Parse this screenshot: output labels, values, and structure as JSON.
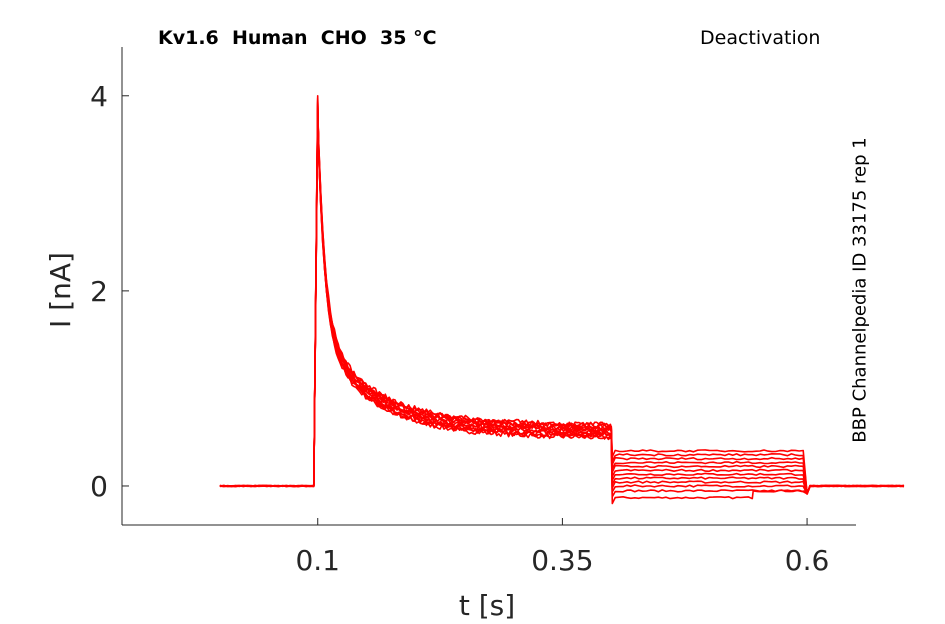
{
  "header": {
    "title": "Kv1.6  Human  CHO  35 °C",
    "protocol": "Deactivation",
    "source": "BBP Channelpedia ID 33175 rep 1"
  },
  "chart_data": {
    "type": "line",
    "title": "Kv1.6  Human  CHO  35 °C",
    "xlabel": "t [s]",
    "ylabel": "I [nA]",
    "xlim": [
      -0.1,
      0.65
    ],
    "ylim": [
      -0.4,
      4.5
    ],
    "xticks": [
      0.1,
      0.35,
      0.6
    ],
    "xtick_labels": [
      "0.1",
      "0.35",
      "0.6"
    ],
    "yticks": [
      0,
      2,
      4
    ],
    "ytick_labels": [
      "0",
      "2",
      "4"
    ],
    "grid": false,
    "line_color": "#ff0000",
    "series_count": 12,
    "segments": {
      "holding_level": 0.0,
      "step_on_time": 0.1,
      "peak_current": 4.0,
      "steady_current_end_of_step": 0.55,
      "tail_start_time": 0.4,
      "tail_end_time": 0.6,
      "trace_end_time": 0.7,
      "tail_levels": [
        -0.12,
        -0.05,
        0.0,
        0.04,
        0.08,
        0.12,
        0.16,
        0.2,
        0.24,
        0.28,
        0.32,
        0.36
      ]
    },
    "decay_samples": [
      {
        "t": 0.1,
        "i": 4.0
      },
      {
        "t": 0.11,
        "i": 2.3
      },
      {
        "t": 0.125,
        "i": 1.45
      },
      {
        "t": 0.15,
        "i": 1.05
      },
      {
        "t": 0.2,
        "i": 0.78
      },
      {
        "t": 0.25,
        "i": 0.65
      },
      {
        "t": 0.3,
        "i": 0.59
      },
      {
        "t": 0.4,
        "i": 0.55
      }
    ]
  }
}
